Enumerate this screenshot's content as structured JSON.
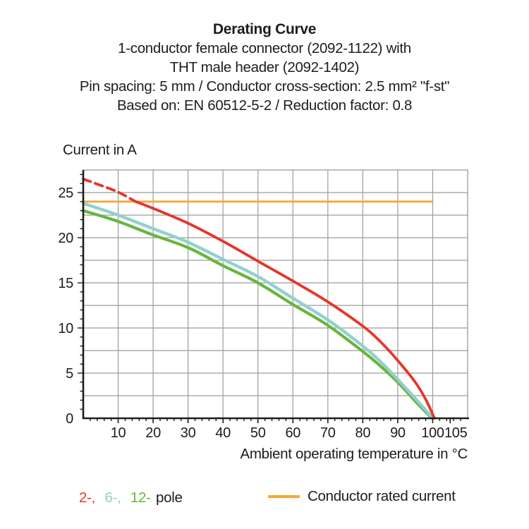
{
  "title": {
    "line1": "Derating Curve",
    "line2": "1-conductor female connector (2092-1122) with",
    "line3": "THT male header (2092-1402)",
    "line4": "Pin spacing: 5 mm / Conductor cross-section: 2.5 mm² \"f-st\"",
    "line5": "Based on: EN 60512-5-2 / Reduction factor: 0.8"
  },
  "colors": {
    "red_2pole": "#e6362d",
    "cyan_6pole": "#92d1cd",
    "green_12pole": "#67b63c",
    "orange_rated": "#f6a83b",
    "grid_gray": "#9c9c9c",
    "text_black": "#1d1d1b"
  },
  "legend": {
    "poles": [
      {
        "text": "2-,",
        "color": "#e6362d"
      },
      {
        "text": "6-,",
        "color": "#92d1cd"
      },
      {
        "text": "12-",
        "color": "#67b63c"
      },
      {
        "text": "pole",
        "color": "#1d1d1b"
      }
    ],
    "rated": {
      "label": "Conductor rated current",
      "color": "#f6a83b"
    }
  },
  "chart_data": {
    "type": "line",
    "title": "Derating Curve",
    "xlabel": "Ambient operating temperature in °C",
    "ylabel": "Current in A",
    "xlim": [
      0,
      110
    ],
    "ylim": [
      0,
      27.5
    ],
    "x_ticks": [
      10,
      20,
      30,
      40,
      50,
      60,
      70,
      80,
      90,
      100,
      105
    ],
    "y_ticks": [
      0,
      5,
      10,
      15,
      20,
      25
    ],
    "grid": {
      "visible": true,
      "x_step": 10,
      "y_step": 2.5,
      "color": "#9c9c9c"
    },
    "legend_position": "bottom",
    "series": [
      {
        "name": "2-pole",
        "color": "#e6362d",
        "segments": [
          {
            "style": "dashed",
            "x": [
              0,
              5,
              10,
              15
            ],
            "y": [
              26.5,
              25.8,
              25.05,
              24.0
            ]
          },
          {
            "style": "solid",
            "x": [
              15,
              20,
              30,
              40,
              50,
              60,
              70,
              80,
              85,
              90,
              95,
              98,
              100.5
            ],
            "y": [
              24.0,
              23.25,
              21.6,
              19.6,
              17.4,
              15.2,
              12.9,
              10.2,
              8.5,
              6.4,
              4.0,
              2.1,
              0
            ]
          }
        ]
      },
      {
        "name": "6-pole",
        "color": "#92d1cd",
        "segments": [
          {
            "style": "solid",
            "x": [
              0,
              10,
              20,
              30,
              40,
              50,
              60,
              70,
              80,
              85,
              90,
              95,
              98,
              100
            ],
            "y": [
              23.8,
              22.5,
              21.0,
              19.5,
              17.6,
              15.7,
              13.3,
              10.9,
              8.0,
              6.3,
              4.3,
              2.2,
              0.9,
              0
            ]
          }
        ]
      },
      {
        "name": "12-pole",
        "color": "#67b63c",
        "segments": [
          {
            "style": "solid",
            "x": [
              0,
              10,
              20,
              30,
              40,
              50,
              60,
              70,
              80,
              85,
              90,
              95,
              98,
              99.8
            ],
            "y": [
              23.0,
              21.8,
              20.3,
              18.9,
              16.9,
              15.0,
              12.6,
              10.3,
              7.4,
              5.8,
              4.0,
              1.9,
              0.7,
              0
            ]
          }
        ]
      },
      {
        "name": "Conductor rated current",
        "color": "#f6a83b",
        "segments": [
          {
            "style": "solid",
            "x": [
              0,
              100
            ],
            "y": [
              24,
              24
            ]
          }
        ]
      }
    ]
  }
}
